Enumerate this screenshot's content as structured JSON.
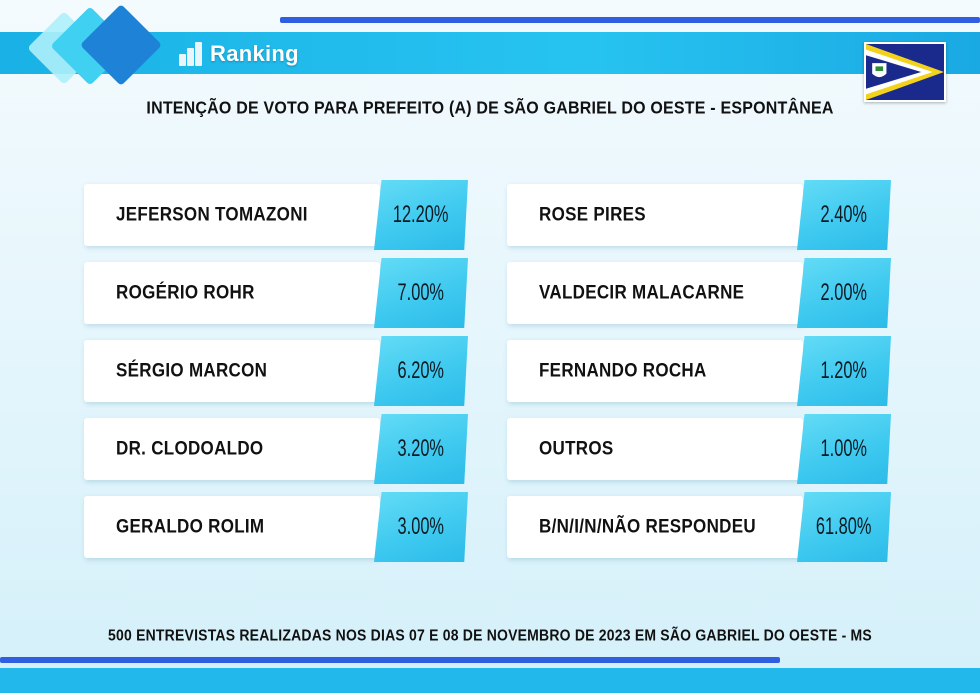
{
  "brand": {
    "logo_text": "Ranking"
  },
  "title": "INTENÇÃO DE VOTO PARA PREFEITO (A) DE SÃO GABRIEL DO OESTE - ESPONTÂNEA",
  "footer": "500 ENTREVISTAS REALIZADAS NOS DIAS 07 E 08 DE NOVEMBRO DE 2023 EM SÃO GABRIEL DO OESTE - MS",
  "colors": {
    "accent": "#22b8ec",
    "line": "#2f5fe0",
    "value_box": "#3cc8ef"
  },
  "chart_data": {
    "type": "table",
    "title": "INTENÇÃO DE VOTO PARA PREFEITO (A) DE SÃO GABRIEL DO OESTE - ESPONTÂNEA",
    "rows": [
      {
        "name": "JEFERSON TOMAZONI",
        "value": 12.2,
        "label": "12.20%"
      },
      {
        "name": "ROGÉRIO ROHR",
        "value": 7.0,
        "label": "7.00%"
      },
      {
        "name": "SÉRGIO MARCON",
        "value": 6.2,
        "label": "6.20%"
      },
      {
        "name": "DR. CLODOALDO",
        "value": 3.2,
        "label": "3.20%"
      },
      {
        "name": "GERALDO ROLIM",
        "value": 3.0,
        "label": "3.00%"
      },
      {
        "name": "ROSE PIRES",
        "value": 2.4,
        "label": "2.40%"
      },
      {
        "name": "VALDECIR MALACARNE",
        "value": 2.0,
        "label": "2.00%"
      },
      {
        "name": "FERNANDO ROCHA",
        "value": 1.2,
        "label": "1.20%"
      },
      {
        "name": "OUTROS",
        "value": 1.0,
        "label": "1.00%"
      },
      {
        "name": "B/N/I/N/NÃO RESPONDEU",
        "value": 61.8,
        "label": "61.80%"
      }
    ]
  }
}
